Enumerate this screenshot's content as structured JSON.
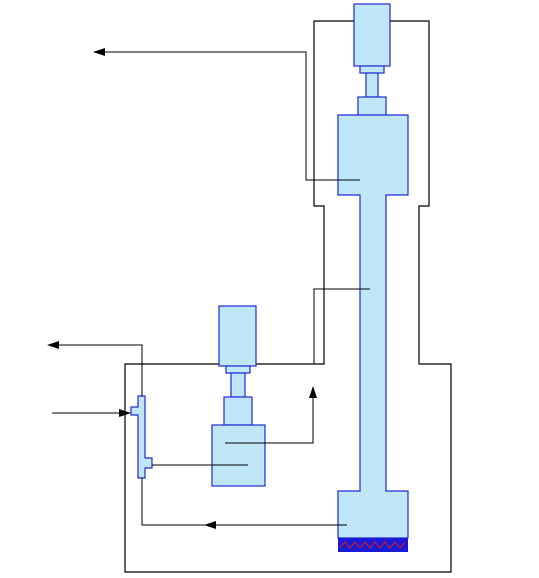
{
  "diagram": {
    "colors": {
      "background": "#ffffff",
      "outline": "#000000",
      "component_fill": "#bfe7f7",
      "component_stroke": "#1f2ad6",
      "liquid_fill": "#1a1ad6",
      "liquid_wave": "#d41a1a"
    }
  }
}
